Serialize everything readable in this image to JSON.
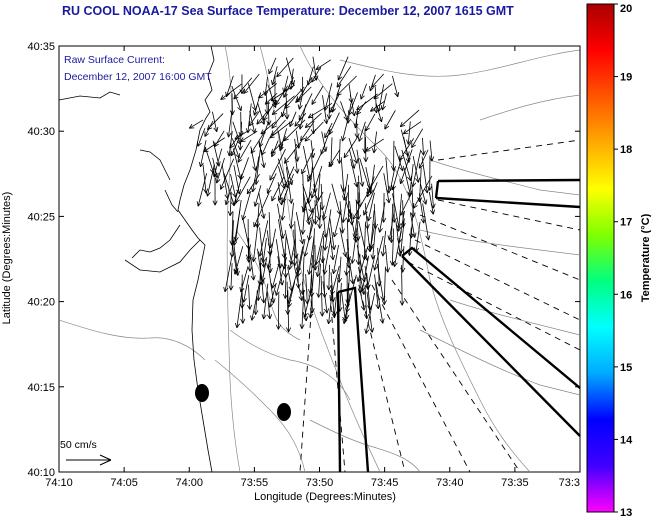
{
  "title": "RU COOL  NOAA-17  Sea Surface Temperature:  December 12, 2007 1615 GMT",
  "annotation": {
    "line1": "Raw Surface Current:",
    "line2": "December 12, 2007 16:00 GMT"
  },
  "scale_label": "50 cm/s",
  "axes": {
    "xlabel": "Longitude (Degrees:Minutes)",
    "ylabel": "Latitude (Degrees:Minutes)",
    "xticks": [
      "74:10",
      "74:05",
      "74:00",
      "73:55",
      "73:50",
      "73:45",
      "73:40",
      "73:35",
      "73:3"
    ],
    "yticks": [
      "40:35",
      "40:30",
      "40:25",
      "40:20",
      "40:15",
      "40:10"
    ]
  },
  "colorbar": {
    "label": "Temperature (°C)",
    "ticks": [
      "20",
      "19",
      "18",
      "17",
      "16",
      "15",
      "14",
      "13"
    ],
    "min": 13,
    "max": 20,
    "colors": [
      "#ff00ff",
      "#4000ff",
      "#0000ff",
      "#00aaff",
      "#00ffff",
      "#00ff80",
      "#80ff00",
      "#ffff00",
      "#ffaa00",
      "#ff5500",
      "#ff0000",
      "#aa0000"
    ]
  }
}
